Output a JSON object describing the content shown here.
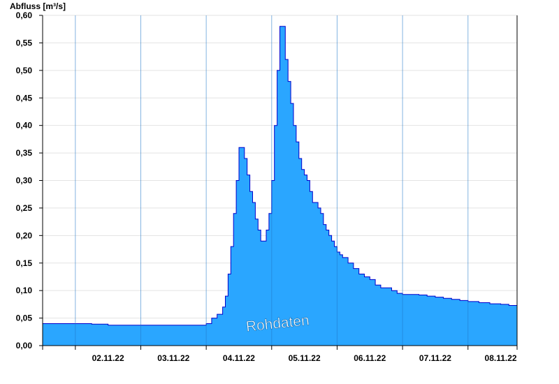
{
  "chart_data": {
    "type": "area",
    "ylabel": "Abfluss [m³/s]",
    "watermark": "Rohdaten",
    "ylim": [
      0,
      0.6
    ],
    "yticks": [
      "0,00",
      "0,05",
      "0,10",
      "0,15",
      "0,20",
      "0,25",
      "0,30",
      "0,35",
      "0,40",
      "0,45",
      "0,50",
      "0,55",
      "0,60"
    ],
    "x_range": [
      "01.11.22 12:00",
      "08.11.22 18:00"
    ],
    "xticks": [
      "02.11.22",
      "03.11.22",
      "04.11.22",
      "05.11.22",
      "06.11.22",
      "07.11.22",
      "08.11.22"
    ],
    "grid": "horizontal",
    "fill_color": "#2aa6ff",
    "line_color": "#0000cc",
    "series": [
      {
        "x": [
          "01.11.22 12:00",
          "01.11.22 18:00",
          "02.11.22 00:00",
          "02.11.22 06:00",
          "02.11.22 12:00",
          "02.11.22 18:00",
          "03.11.22 00:00",
          "03.11.22 06:00",
          "03.11.22 12:00",
          "03.11.22 18:00",
          "03.11.22 20:00",
          "03.11.22 22:00",
          "04.11.22 00:00",
          "04.11.22 02:00",
          "04.11.22 04:00",
          "04.11.22 05:00",
          "04.11.22 06:00",
          "04.11.22 07:00",
          "04.11.22 08:00",
          "04.11.22 09:00",
          "04.11.22 10:00",
          "04.11.22 11:00",
          "04.11.22 12:00",
          "04.11.22 13:00",
          "04.11.22 14:00",
          "04.11.22 15:00",
          "04.11.22 16:00",
          "04.11.22 17:00",
          "04.11.22 18:00",
          "04.11.22 19:00",
          "04.11.22 20:00",
          "04.11.22 21:00",
          "04.11.22 22:00",
          "04.11.22 23:00",
          "05.11.22 00:00",
          "05.11.22 01:00",
          "05.11.22 02:00",
          "05.11.22 03:00",
          "05.11.22 04:00",
          "05.11.22 05:00",
          "05.11.22 06:00",
          "05.11.22 07:00",
          "05.11.22 08:00",
          "05.11.22 09:00",
          "05.11.22 10:00",
          "05.11.22 11:00",
          "05.11.22 12:00",
          "05.11.22 13:00",
          "05.11.22 14:00",
          "05.11.22 15:00",
          "05.11.22 16:00",
          "05.11.22 17:00",
          "05.11.22 18:00",
          "05.11.22 19:00",
          "05.11.22 20:00",
          "05.11.22 21:00",
          "05.11.22 22:00",
          "05.11.22 23:00",
          "06.11.22 00:00",
          "06.11.22 01:00",
          "06.11.22 02:00",
          "06.11.22 04:00",
          "06.11.22 06:00",
          "06.11.22 08:00",
          "06.11.22 10:00",
          "06.11.22 12:00",
          "06.11.22 14:00",
          "06.11.22 16:00",
          "06.11.22 18:00",
          "06.11.22 20:00",
          "06.11.22 22:00",
          "07.11.22 00:00",
          "07.11.22 03:00",
          "07.11.22 06:00",
          "07.11.22 09:00",
          "07.11.22 12:00",
          "07.11.22 15:00",
          "07.11.22 18:00",
          "07.11.22 21:00",
          "08.11.22 00:00",
          "08.11.22 04:00",
          "08.11.22 08:00",
          "08.11.22 12:00",
          "08.11.22 15:00",
          "08.11.22 18:00"
        ],
        "values": [
          0.04,
          0.04,
          0.04,
          0.039,
          0.037,
          0.037,
          0.037,
          0.037,
          0.037,
          0.037,
          0.037,
          0.037,
          0.04,
          0.05,
          0.057,
          0.057,
          0.07,
          0.09,
          0.13,
          0.18,
          0.24,
          0.3,
          0.36,
          0.36,
          0.34,
          0.31,
          0.28,
          0.26,
          0.23,
          0.21,
          0.19,
          0.19,
          0.21,
          0.24,
          0.3,
          0.4,
          0.5,
          0.58,
          0.58,
          0.52,
          0.48,
          0.44,
          0.4,
          0.37,
          0.34,
          0.32,
          0.31,
          0.3,
          0.28,
          0.26,
          0.26,
          0.25,
          0.24,
          0.22,
          0.21,
          0.2,
          0.19,
          0.18,
          0.17,
          0.165,
          0.16,
          0.15,
          0.14,
          0.13,
          0.125,
          0.12,
          0.11,
          0.105,
          0.105,
          0.1,
          0.095,
          0.093,
          0.093,
          0.092,
          0.09,
          0.088,
          0.086,
          0.084,
          0.082,
          0.08,
          0.078,
          0.076,
          0.075,
          0.073,
          0.072
        ]
      }
    ]
  }
}
